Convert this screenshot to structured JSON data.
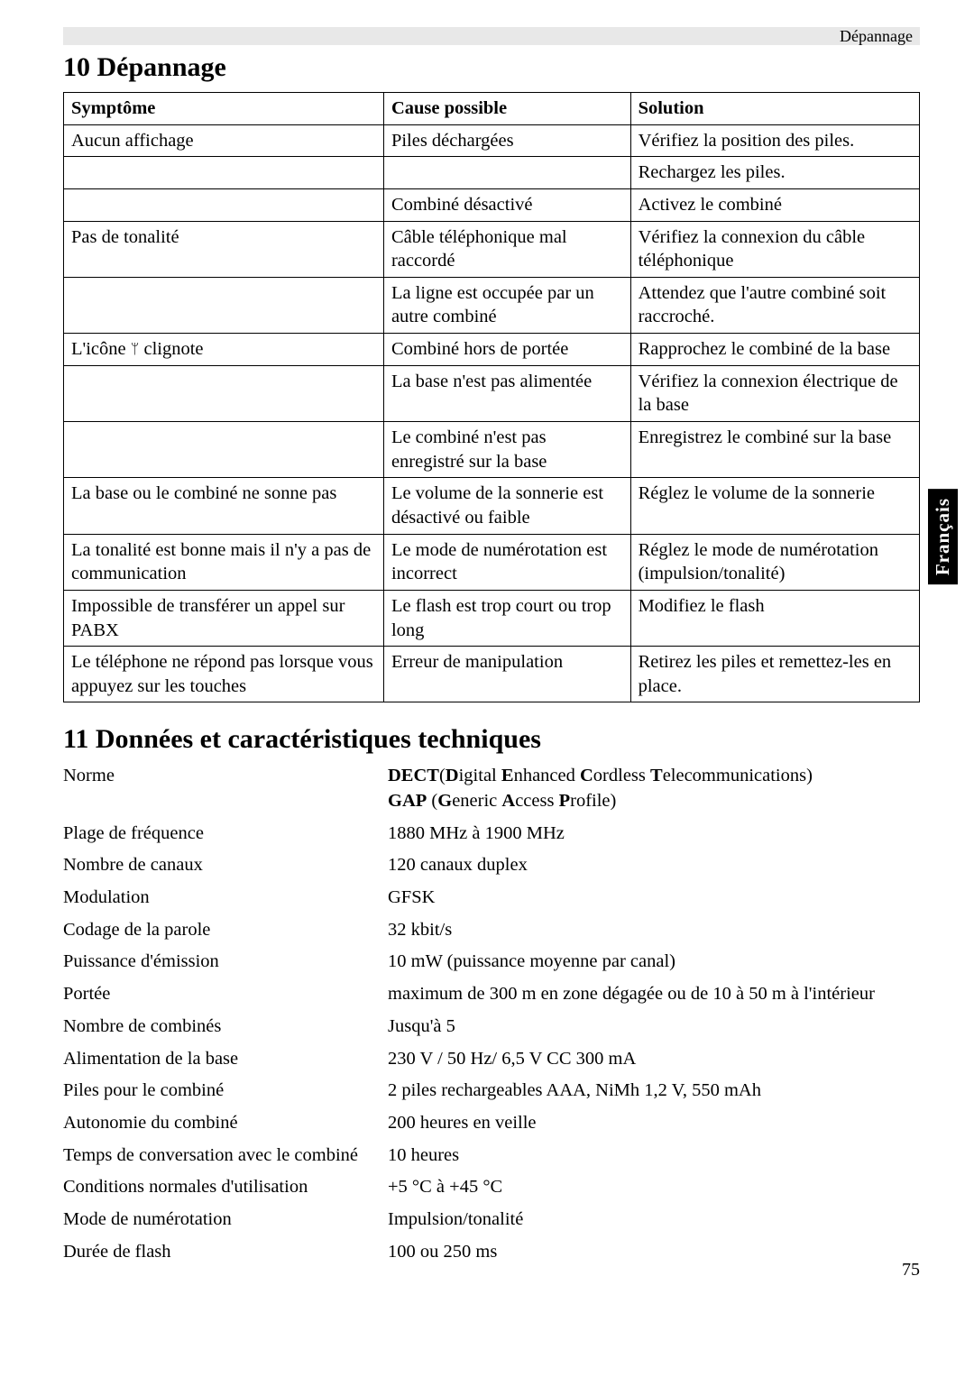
{
  "header_label": "Dépannage",
  "section10": {
    "heading": "10  Dépannage",
    "columns": [
      "Symptôme",
      "Cause possible",
      "Solution"
    ],
    "rows": [
      [
        "Aucun affichage",
        "Piles déchargées",
        "Vérifiez la position des piles."
      ],
      [
        "",
        "",
        "Rechargez les piles."
      ],
      [
        "",
        "Combiné désactivé",
        "Activez le combiné"
      ],
      [
        "Pas de tonalité",
        "Câble téléphonique mal raccordé",
        "Vérifiez la connexion du câble téléphonique"
      ],
      [
        "",
        "La ligne est occupée par un autre combiné",
        "Attendez que l'autre combiné soit raccroché."
      ],
      [
        "L'icône 📶 clignote",
        "Combiné hors de portée",
        "Rapprochez le combiné de la base"
      ],
      [
        "",
        "La base n'est pas alimentée",
        "Vérifiez la connexion électrique de la base"
      ],
      [
        "",
        "Le combiné n'est pas enregistré sur la base",
        "Enregistrez le combiné sur la base"
      ],
      [
        "La base ou le combiné ne sonne pas",
        "Le volume de la sonnerie est désactivé ou faible",
        "Réglez le volume de la sonnerie"
      ],
      [
        "La tonalité est bonne mais il n'y a pas de communication",
        "Le mode de numérotation est incorrect",
        "Réglez le mode de numérotation (impulsion/tonalité)"
      ],
      [
        "Impossible de transférer un appel sur PABX",
        "Le flash est trop court ou trop long",
        "Modifiez le flash"
      ],
      [
        "Le téléphone ne répond pas lorsque vous appuyez sur les touches",
        "Erreur de manipulation",
        "Retirez les piles et remettez-les en place."
      ]
    ]
  },
  "section11": {
    "heading": "11  Données et caractéristiques techniques",
    "rows": [
      {
        "label": "Norme",
        "value_html": "<b>DECT</b>(<b>D</b>igital <b>E</b>nhanced <b>C</b>ordless <b>T</b>elecommunications)<br><b>GAP</b> (<b>G</b>eneric <b>A</b>ccess <b>P</b>rofile)"
      },
      {
        "label": "Plage de fréquence",
        "value": "1880 MHz à 1900 MHz"
      },
      {
        "label": "Nombre de canaux",
        "value": "120 canaux duplex"
      },
      {
        "label": "Modulation",
        "value": "GFSK"
      },
      {
        "label": "Codage de la parole",
        "value": "32 kbit/s"
      },
      {
        "label": "Puissance d'émission",
        "value": "10 mW (puissance moyenne par canal)"
      },
      {
        "label": "Portée",
        "value": "maximum de 300 m en zone dégagée ou de 10 à 50 m à l'intérieur"
      },
      {
        "label": "Nombre de combinés",
        "value": "Jusqu'à 5"
      },
      {
        "label": "Alimentation de la base",
        "value": "230 V / 50 Hz/ 6,5 V CC 300 mA"
      },
      {
        "label": "Piles pour le combiné",
        "value": "2 piles rechargeables AAA, NiMh 1,2 V, 550 mAh"
      },
      {
        "label": "Autonomie du combiné",
        "value": "200 heures en veille"
      },
      {
        "label": "Temps de conversation avec le combiné",
        "value": "10 heures"
      },
      {
        "label": "Conditions normales d'utilisation",
        "value": "+5 °C à +45 °C"
      },
      {
        "label": "Mode de numérotation",
        "value": "Impulsion/tonalité"
      },
      {
        "label": "Durée de flash",
        "value": "100 ou 250 ms"
      }
    ]
  },
  "side_tab": "Français",
  "page_number": "75",
  "colors": {
    "bar_bg": "#e8e8e8",
    "tab_bg": "#000000",
    "tab_fg": "#ffffff"
  }
}
